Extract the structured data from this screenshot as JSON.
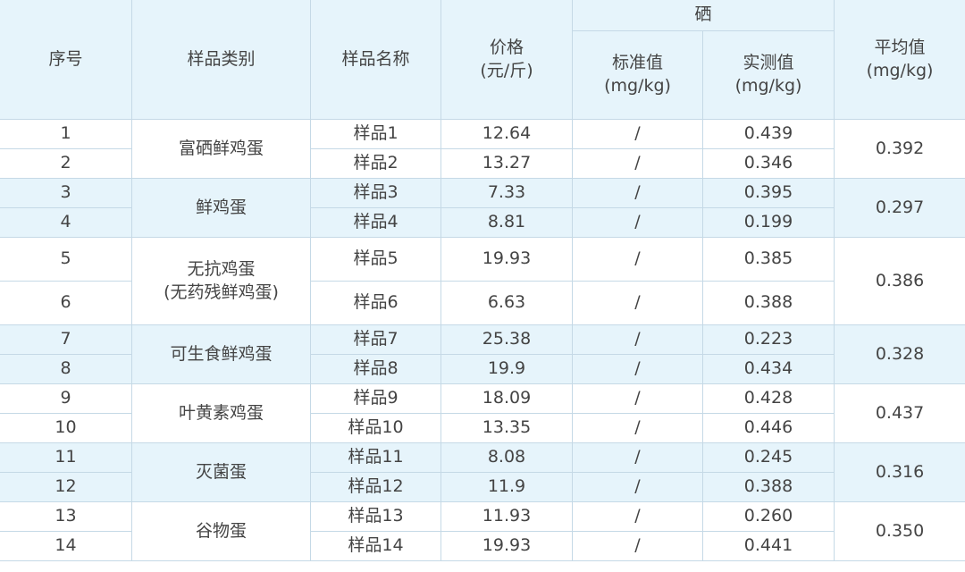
{
  "header": {
    "no": "序号",
    "category": "样品类别",
    "name": "样品名称",
    "price": [
      "价格",
      "(元/斤)"
    ],
    "selenium": "硒",
    "standard": [
      "标准值",
      "(mg/kg)"
    ],
    "measured": [
      "实测值",
      "(mg/kg)"
    ],
    "average": [
      "平均值",
      "(mg/kg)"
    ]
  },
  "groups": [
    {
      "category": [
        "富硒鲜鸡蛋"
      ],
      "average": "0.392",
      "shaded": false,
      "rows": [
        {
          "no": "1",
          "name": "样品1",
          "price": "12.64",
          "standard": "/",
          "measured": "0.439"
        },
        {
          "no": "2",
          "name": "样品2",
          "price": "13.27",
          "standard": "/",
          "measured": "0.346"
        }
      ]
    },
    {
      "category": [
        "鲜鸡蛋"
      ],
      "average": "0.297",
      "shaded": true,
      "rows": [
        {
          "no": "3",
          "name": "样品3",
          "price": "7.33",
          "standard": "/",
          "measured": "0.395"
        },
        {
          "no": "4",
          "name": "样品4",
          "price": "8.81",
          "standard": "/",
          "measured": "0.199"
        }
      ]
    },
    {
      "category": [
        "无抗鸡蛋",
        "(无药残鲜鸡蛋)"
      ],
      "average": "0.386",
      "shaded": false,
      "tall": true,
      "rows": [
        {
          "no": "5",
          "name": "样品5",
          "price": "19.93",
          "standard": "/",
          "measured": "0.385"
        },
        {
          "no": "6",
          "name": "样品6",
          "price": "6.63",
          "standard": "/",
          "measured": "0.388"
        }
      ]
    },
    {
      "category": [
        "可生食鲜鸡蛋"
      ],
      "average": "0.328",
      "shaded": true,
      "rows": [
        {
          "no": "7",
          "name": "样品7",
          "price": "25.38",
          "standard": "/",
          "measured": "0.223"
        },
        {
          "no": "8",
          "name": "样品8",
          "price": "19.9",
          "standard": "/",
          "measured": "0.434"
        }
      ]
    },
    {
      "category": [
        "叶黄素鸡蛋"
      ],
      "average": "0.437",
      "shaded": false,
      "rows": [
        {
          "no": "9",
          "name": "样品9",
          "price": "18.09",
          "standard": "/",
          "measured": "0.428"
        },
        {
          "no": "10",
          "name": "样品10",
          "price": "13.35",
          "standard": "/",
          "measured": "0.446"
        }
      ]
    },
    {
      "category": [
        "灭菌蛋"
      ],
      "average": "0.316",
      "shaded": true,
      "rows": [
        {
          "no": "11",
          "name": "样品11",
          "price": "8.08",
          "standard": "/",
          "measured": "0.245"
        },
        {
          "no": "12",
          "name": "样品12",
          "price": "11.9",
          "standard": "/",
          "measured": "0.388"
        }
      ]
    },
    {
      "category": [
        "谷物蛋"
      ],
      "average": "0.350",
      "shaded": false,
      "rows": [
        {
          "no": "13",
          "name": "样品13",
          "price": "11.93",
          "standard": "/",
          "measured": "0.260"
        },
        {
          "no": "14",
          "name": "样品14",
          "price": "19.93",
          "standard": "/",
          "measured": "0.441"
        }
      ]
    }
  ],
  "colors": {
    "header_bg": "#e6f4fb",
    "border": "#c5d9e6",
    "text": "#444444"
  }
}
